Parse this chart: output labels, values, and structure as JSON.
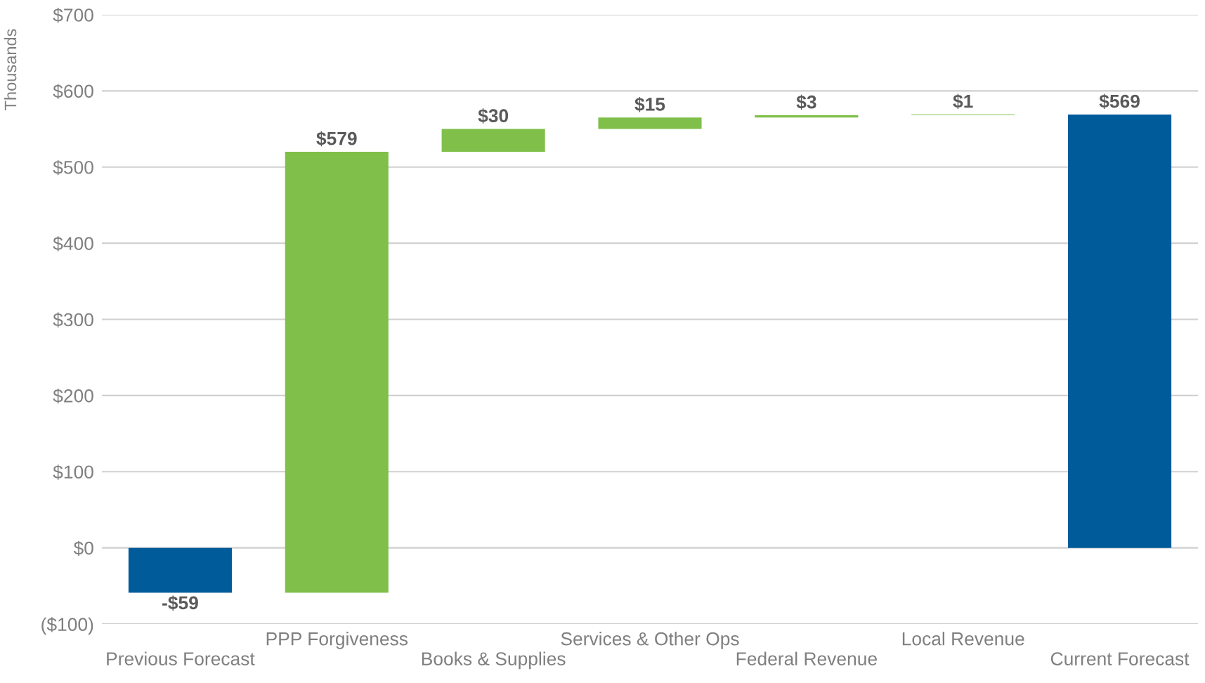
{
  "chart_data": {
    "type": "bar",
    "ylabel": "Thousands",
    "categories": [
      "Previous Forecast",
      "PPP Forgiveness",
      "Books & Supplies",
      "Services & Other Ops",
      "Federal Revenue",
      "Local Revenue",
      "Current Forecast"
    ],
    "values": [
      -59,
      579,
      30,
      15,
      3,
      1,
      569
    ],
    "base": [
      0,
      -59,
      520,
      550,
      565,
      568,
      0
    ],
    "colors": [
      "#005b9a",
      "#7fbf4a",
      "#7fbf4a",
      "#7fbf4a",
      "#7fbf4a",
      "#7fbf4a",
      "#005b9a"
    ],
    "value_labels": [
      "-$59",
      "$579",
      "$30",
      "$15",
      "$3",
      "$1",
      "$569"
    ],
    "ylim": [
      -100,
      700
    ],
    "yticks": [
      {
        "value": -100,
        "label": "($100)"
      },
      {
        "value": 0,
        "label": "$0"
      },
      {
        "value": 100,
        "label": "$100"
      },
      {
        "value": 200,
        "label": "$200"
      },
      {
        "value": 300,
        "label": "$300"
      },
      {
        "value": 400,
        "label": "$400"
      },
      {
        "value": 500,
        "label": "$500"
      },
      {
        "value": 600,
        "label": "$600"
      },
      {
        "value": 700,
        "label": "$700"
      }
    ],
    "grid": "y"
  }
}
